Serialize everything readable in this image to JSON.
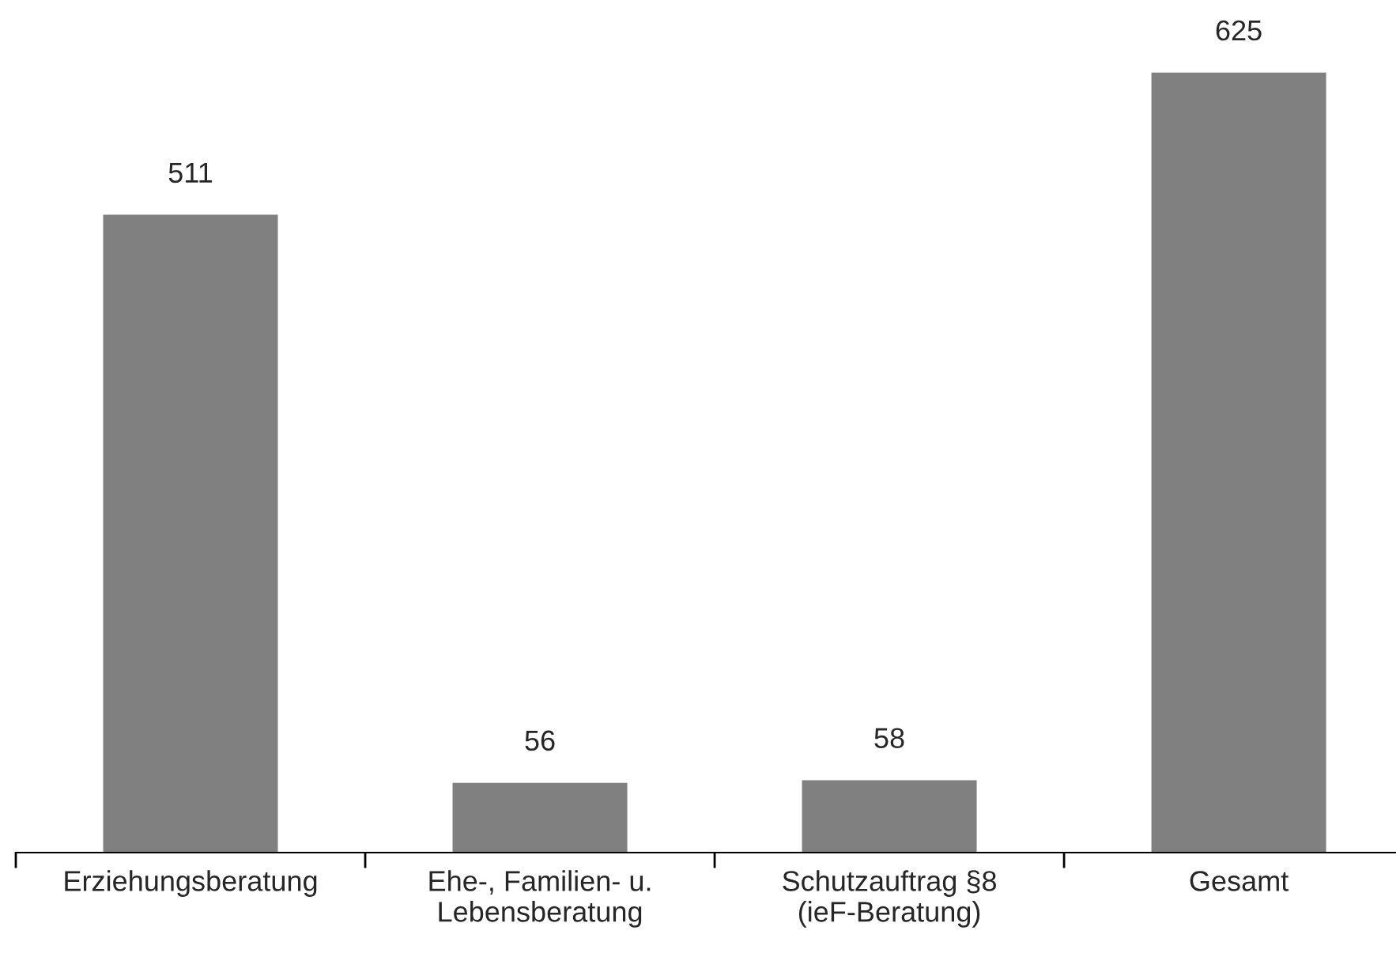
{
  "chart_data": {
    "type": "bar",
    "categories": [
      "Erziehungsberatung",
      "Ehe-, Familien- u.\nLebensberatung",
      "Schutzauftrag §8\n(ieF-Beratung)",
      "Gesamt"
    ],
    "values": [
      511,
      56,
      58,
      625
    ],
    "color": "#808080",
    "data_labels": true,
    "grid": false,
    "legend": false
  }
}
